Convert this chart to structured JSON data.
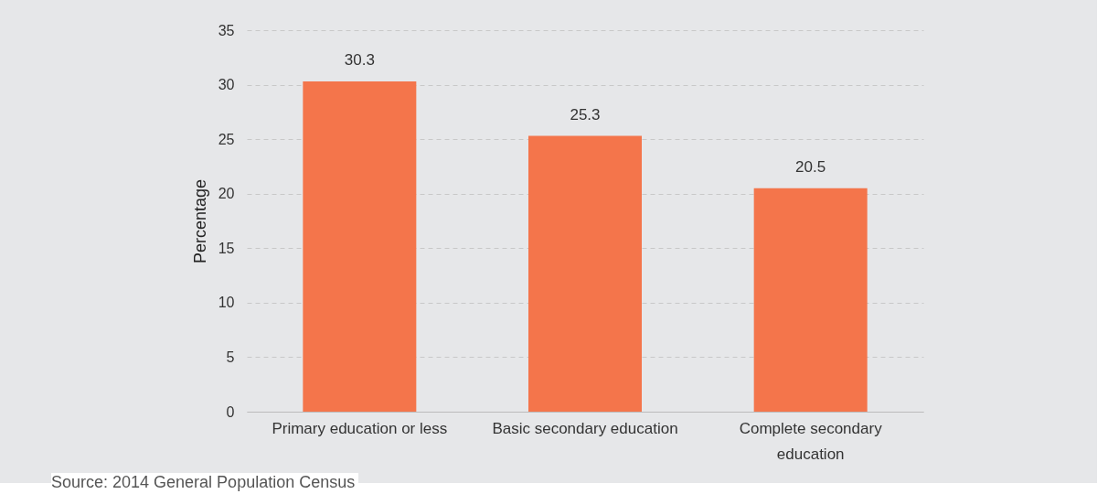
{
  "chart_data": {
    "type": "bar",
    "ylabel": "Percentage",
    "categories": [
      "Primary education or less",
      "Basic secondary education",
      "Complete secondary education"
    ],
    "values": [
      30.3,
      25.3,
      20.5
    ],
    "color": "#f4754b",
    "ylim": [
      0,
      35
    ],
    "yticks": [
      0,
      5,
      10,
      15,
      20,
      25,
      30,
      35
    ],
    "grid": "y",
    "data_labels": true,
    "annotations": [
      "Source: 2014 General Population Census"
    ]
  }
}
